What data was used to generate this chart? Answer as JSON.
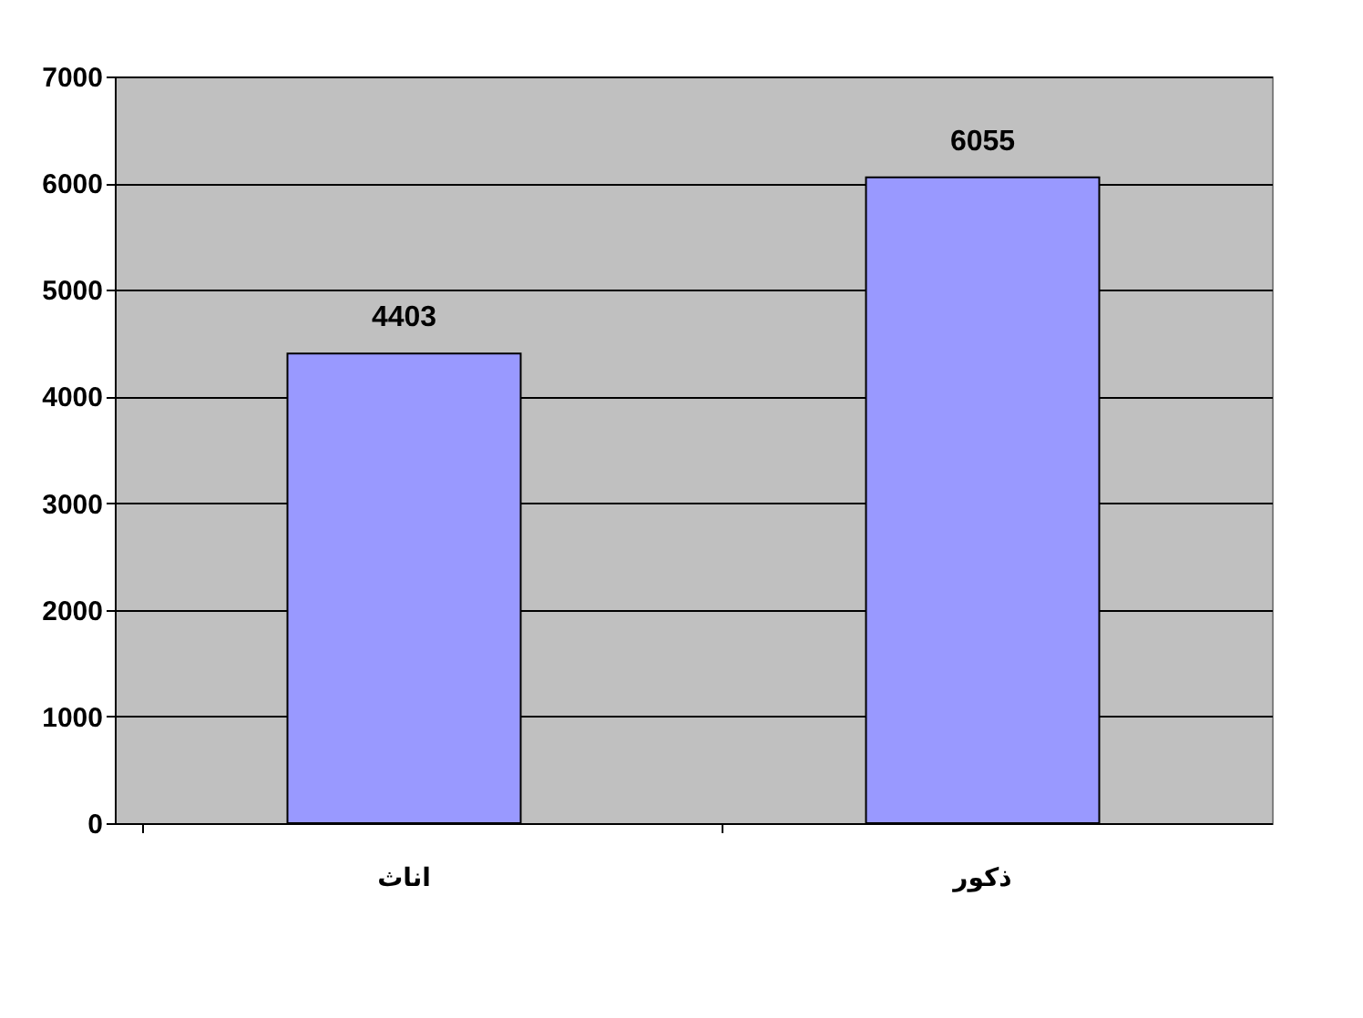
{
  "chart_data": {
    "type": "bar",
    "categories": [
      "اناث",
      "ذكور"
    ],
    "values": [
      4403,
      6055
    ],
    "color": "#9999ff",
    "ylim": [
      0,
      7000
    ],
    "yticks": [
      0,
      1000,
      2000,
      3000,
      4000,
      5000,
      6000,
      7000
    ],
    "grid": "y",
    "data_labels": true
  }
}
